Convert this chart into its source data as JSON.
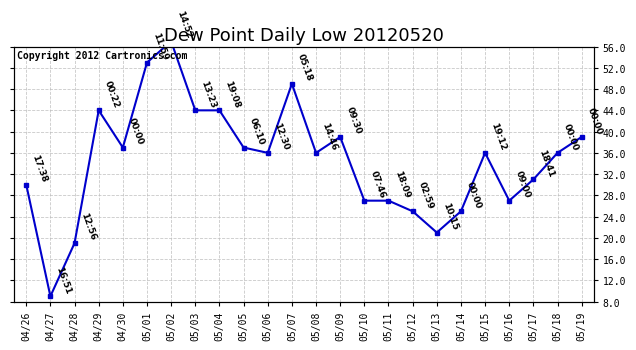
{
  "title": "Dew Point Daily Low 20120520",
  "copyright": "Copyright 2012 Cartronics.com",
  "x_labels": [
    "04/26",
    "04/27",
    "04/28",
    "04/29",
    "04/30",
    "05/01",
    "05/02",
    "05/03",
    "05/04",
    "05/05",
    "05/06",
    "05/07",
    "05/08",
    "05/09",
    "05/10",
    "05/11",
    "05/12",
    "05/13",
    "05/14",
    "05/15",
    "05/16",
    "05/17",
    "05/18",
    "05/19"
  ],
  "y_values": [
    30,
    9,
    19,
    44,
    37,
    53,
    57,
    44,
    44,
    37,
    36,
    49,
    36,
    39,
    27,
    27,
    25,
    21,
    25,
    36,
    27,
    31,
    36,
    39
  ],
  "point_times": [
    "17:38",
    "16:51",
    "12:56",
    "00:22",
    "00:00",
    "11:59",
    "14:52",
    "13:23",
    "19:08",
    "06:10",
    "12:30",
    "05:18",
    "14:46",
    "09:30",
    "07:46",
    "18:09",
    "02:59",
    "10:15",
    "00:00",
    "19:12",
    "09:00",
    "18:41",
    "00:00",
    "00:00"
  ],
  "ylim_min": 8.0,
  "ylim_max": 56.0,
  "yticks": [
    8.0,
    12.0,
    16.0,
    20.0,
    24.0,
    28.0,
    32.0,
    36.0,
    40.0,
    44.0,
    48.0,
    52.0,
    56.0
  ],
  "line_color": "#0000CC",
  "marker_color": "#0000CC",
  "bg_color": "#FFFFFF",
  "grid_color": "#BBBBBB",
  "title_fontsize": 13,
  "copyright_fontsize": 7,
  "tick_fontsize": 7,
  "annotation_fontsize": 6.5
}
